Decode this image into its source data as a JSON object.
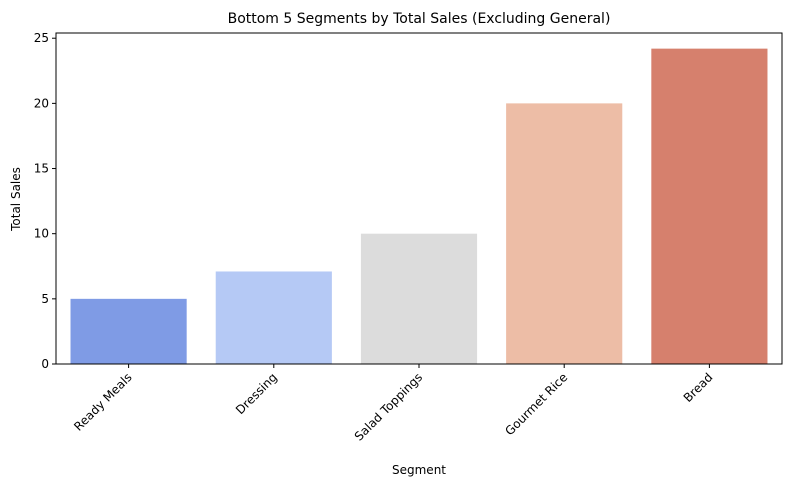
{
  "chart_data": {
    "type": "bar",
    "title": "Bottom 5 Segments by Total Sales (Excluding General)",
    "xlabel": "Segment",
    "ylabel": "Total Sales",
    "categories": [
      "Ready Meals",
      "Dressing",
      "Salad Toppings",
      "Gourmet Rice",
      "Bread"
    ],
    "values": [
      5.0,
      7.1,
      10.0,
      20.0,
      24.2
    ],
    "colors": [
      "#7f9be5",
      "#b5c9f5",
      "#dcdcdc",
      "#edbda6",
      "#d6806d"
    ],
    "ylim": [
      0,
      25.4
    ],
    "yticks": [
      0,
      5,
      10,
      15,
      20,
      25
    ],
    "grid": false,
    "legend": "none"
  }
}
